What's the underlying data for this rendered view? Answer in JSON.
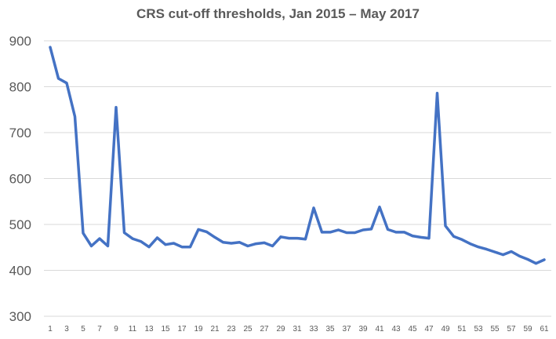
{
  "chart_data": {
    "type": "line",
    "title": "CRS cut-off thresholds, Jan 2015 – May 2017",
    "xlabel": "",
    "ylabel": "",
    "ylim": [
      300,
      900
    ],
    "yticks": [
      "300",
      "400",
      "500",
      "600",
      "700",
      "800",
      "900"
    ],
    "xticks": [
      "1",
      "3",
      "5",
      "7",
      "9",
      "11",
      "13",
      "15",
      "17",
      "19",
      "21",
      "23",
      "25",
      "27",
      "29",
      "31",
      "33",
      "35",
      "37",
      "39",
      "41",
      "43",
      "45",
      "47",
      "49",
      "51",
      "53",
      "55",
      "57",
      "59",
      "61"
    ],
    "grid": true,
    "legend": "none",
    "color": "#4472C4",
    "series": [
      {
        "x": [
          1,
          2,
          3,
          4,
          5,
          6,
          7,
          8,
          9,
          10,
          11,
          12,
          13,
          14,
          15,
          16,
          17,
          18,
          19,
          20,
          21,
          22,
          23,
          24,
          25,
          26,
          27,
          28,
          29,
          30,
          31,
          32,
          33,
          34,
          35,
          36,
          37,
          38,
          39,
          40,
          41,
          42,
          43,
          44,
          45,
          46,
          47,
          48,
          49,
          50,
          51,
          52,
          53,
          54,
          55,
          56,
          57,
          58,
          59,
          60,
          61
        ],
        "values": [
          886,
          818,
          808,
          735,
          481,
          453,
          469,
          453,
          755,
          482,
          469,
          463,
          451,
          471,
          456,
          459,
          451,
          451,
          489,
          484,
          472,
          461,
          459,
          461,
          453,
          458,
          460,
          453,
          473,
          470,
          470,
          468,
          536,
          483,
          483,
          488,
          482,
          482,
          488,
          490,
          538,
          489,
          483,
          483,
          475,
          472,
          470,
          786,
          497,
          474,
          467,
          458,
          451,
          446,
          440,
          434,
          441,
          431,
          424,
          415,
          423
        ]
      }
    ]
  }
}
